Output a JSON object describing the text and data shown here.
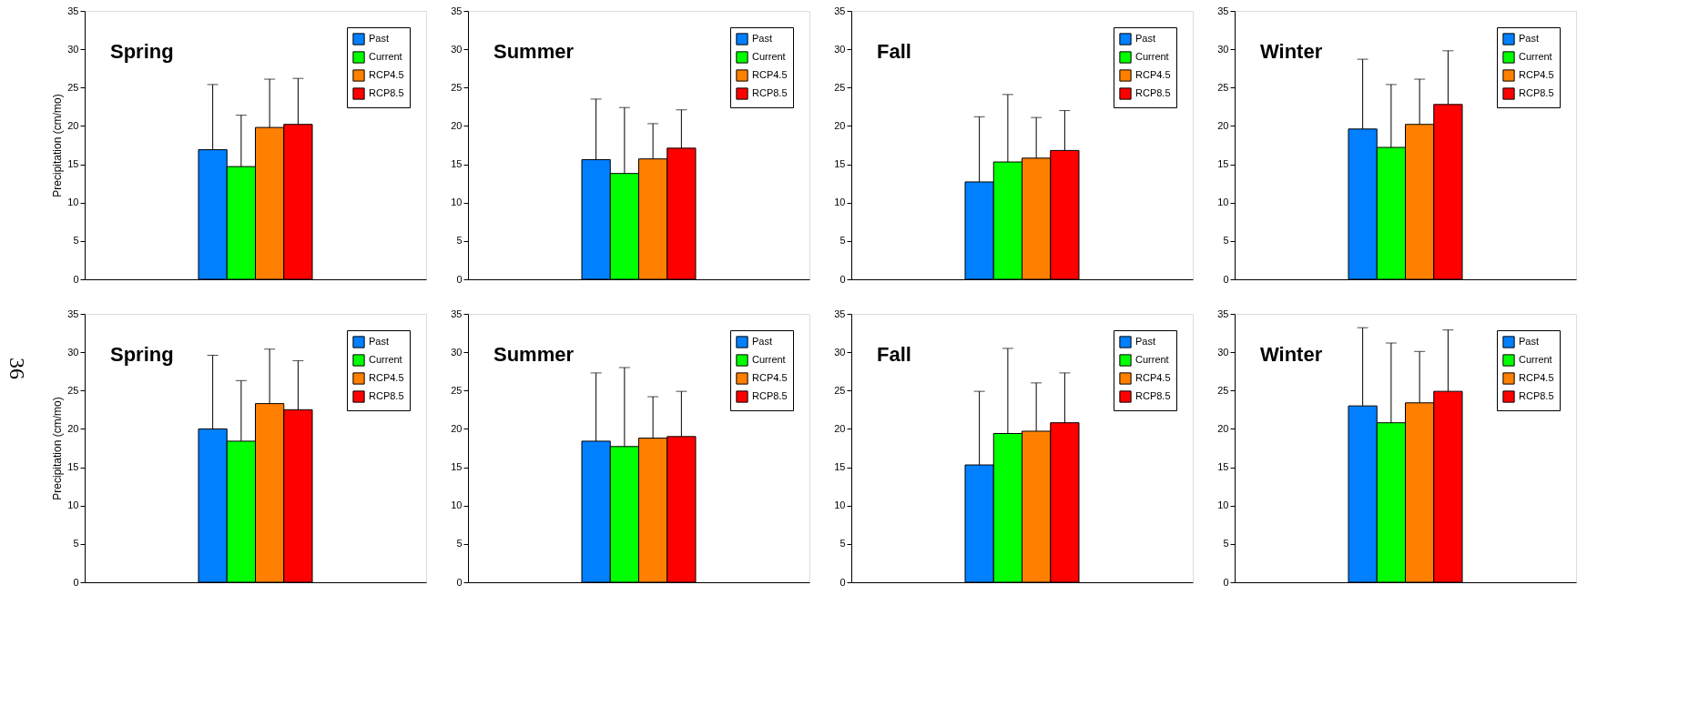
{
  "chart_data": [
    {
      "type": "bar",
      "title": "Spring",
      "ylabel": "Precipitation (cm/mo)",
      "categories": [
        null
      ],
      "ylim": [
        0,
        35
      ],
      "yticks": [
        0,
        5,
        10,
        15,
        20,
        25,
        30,
        35
      ],
      "legend": "top right",
      "tick_labels": "y",
      "series": [
        {
          "name": "Past",
          "color": "#0080ff",
          "values": [
            16.9
          ],
          "errors": [
            [
              16.9,
              25.4
            ]
          ]
        },
        {
          "name": "Current",
          "color": "#00ff00",
          "values": [
            14.7
          ],
          "errors": [
            [
              14.7,
              21.4
            ]
          ]
        },
        {
          "name": "RCP4.5",
          "color": "#ff8000",
          "values": [
            19.8
          ],
          "errors": [
            [
              19.8,
              26.1
            ]
          ]
        },
        {
          "name": "RCP8.5",
          "color": "#ff0000",
          "values": [
            20.2
          ],
          "errors": [
            [
              20.2,
              26.2
            ]
          ]
        }
      ]
    },
    {
      "type": "bar",
      "title": "Summer",
      "categories": [
        null
      ],
      "ylim": [
        0,
        35
      ],
      "yticks": [
        0,
        5,
        10,
        15,
        20,
        25,
        30,
        35
      ],
      "legend": "top right",
      "tick_labels": "y",
      "series": [
        {
          "name": "Past",
          "color": "#0080ff",
          "values": [
            15.6
          ],
          "errors": [
            [
              15.6,
              23.5
            ]
          ]
        },
        {
          "name": "Current",
          "color": "#00ff00",
          "values": [
            13.8
          ],
          "errors": [
            [
              13.8,
              22.4
            ]
          ]
        },
        {
          "name": "RCP4.5",
          "color": "#ff8000",
          "values": [
            15.7
          ],
          "errors": [
            [
              15.7,
              20.3
            ]
          ]
        },
        {
          "name": "RCP8.5",
          "color": "#ff0000",
          "values": [
            17.1
          ],
          "errors": [
            [
              17.1,
              22.1
            ]
          ]
        }
      ]
    },
    {
      "type": "bar",
      "title": "Fall",
      "categories": [
        null
      ],
      "ylim": [
        0,
        35
      ],
      "yticks": [
        0,
        5,
        10,
        15,
        20,
        25,
        30,
        35
      ],
      "legend": "top right",
      "tick_labels": "y",
      "series": [
        {
          "name": "Past",
          "color": "#0080ff",
          "values": [
            12.7
          ],
          "errors": [
            [
              12.7,
              21.2
            ]
          ]
        },
        {
          "name": "Current",
          "color": "#00ff00",
          "values": [
            15.3
          ],
          "errors": [
            [
              15.3,
              24.1
            ]
          ]
        },
        {
          "name": "RCP4.5",
          "color": "#ff8000",
          "values": [
            15.8
          ],
          "errors": [
            [
              15.8,
              21.1
            ]
          ]
        },
        {
          "name": "RCP8.5",
          "color": "#ff0000",
          "values": [
            16.8
          ],
          "errors": [
            [
              16.8,
              22.0
            ]
          ]
        }
      ]
    },
    {
      "type": "bar",
      "title": "Winter",
      "categories": [
        null
      ],
      "ylim": [
        0,
        35
      ],
      "yticks": [
        0,
        5,
        10,
        15,
        20,
        25,
        30,
        35
      ],
      "legend": "top right",
      "tick_labels": "y",
      "series": [
        {
          "name": "Past",
          "color": "#0080ff",
          "values": [
            19.6
          ],
          "errors": [
            [
              19.6,
              28.7
            ]
          ]
        },
        {
          "name": "Current",
          "color": "#00ff00",
          "values": [
            17.2
          ],
          "errors": [
            [
              17.2,
              25.4
            ]
          ]
        },
        {
          "name": "RCP4.5",
          "color": "#ff8000",
          "values": [
            20.2
          ],
          "errors": [
            [
              20.2,
              26.1
            ]
          ]
        },
        {
          "name": "RCP8.5",
          "color": "#ff0000",
          "values": [
            22.8
          ],
          "errors": [
            [
              22.8,
              29.8
            ]
          ]
        }
      ]
    },
    {
      "type": "bar",
      "title": "Spring",
      "ylabel": "Precipitation (cm/mo)",
      "annotations": [
        "36"
      ],
      "categories": [
        null
      ],
      "ylim": [
        0,
        35
      ],
      "yticks": [
        0,
        5,
        10,
        15,
        20,
        25,
        30,
        35
      ],
      "legend": "top right",
      "tick_labels": "y",
      "series": [
        {
          "name": "Past",
          "color": "#0080ff",
          "values": [
            20.0
          ],
          "errors": [
            [
              20.0,
              29.6
            ]
          ]
        },
        {
          "name": "Current",
          "color": "#00ff00",
          "values": [
            18.4
          ],
          "errors": [
            [
              18.4,
              26.3
            ]
          ]
        },
        {
          "name": "RCP4.5",
          "color": "#ff8000",
          "values": [
            23.3
          ],
          "errors": [
            [
              23.3,
              30.4
            ]
          ]
        },
        {
          "name": "RCP8.5",
          "color": "#ff0000",
          "values": [
            22.5
          ],
          "errors": [
            [
              22.5,
              28.9
            ]
          ]
        }
      ]
    },
    {
      "type": "bar",
      "title": "Summer",
      "categories": [
        null
      ],
      "ylim": [
        0,
        35
      ],
      "yticks": [
        0,
        5,
        10,
        15,
        20,
        25,
        30,
        35
      ],
      "legend": "top right",
      "tick_labels": "y",
      "series": [
        {
          "name": "Past",
          "color": "#0080ff",
          "values": [
            18.4
          ],
          "errors": [
            [
              18.4,
              27.3
            ]
          ]
        },
        {
          "name": "Current",
          "color": "#00ff00",
          "values": [
            17.7
          ],
          "errors": [
            [
              17.7,
              28.0
            ]
          ]
        },
        {
          "name": "RCP4.5",
          "color": "#ff8000",
          "values": [
            18.8
          ],
          "errors": [
            [
              18.8,
              24.2
            ]
          ]
        },
        {
          "name": "RCP8.5",
          "color": "#ff0000",
          "values": [
            19.0
          ],
          "errors": [
            [
              19.0,
              24.9
            ]
          ]
        }
      ]
    },
    {
      "type": "bar",
      "title": "Fall",
      "categories": [
        null
      ],
      "ylim": [
        0,
        35
      ],
      "yticks": [
        0,
        5,
        10,
        15,
        20,
        25,
        30,
        35
      ],
      "legend": "top right",
      "tick_labels": "y",
      "series": [
        {
          "name": "Past",
          "color": "#0080ff",
          "values": [
            15.3
          ],
          "errors": [
            [
              15.3,
              24.9
            ]
          ]
        },
        {
          "name": "Current",
          "color": "#00ff00",
          "values": [
            19.4
          ],
          "errors": [
            [
              19.4,
              30.5
            ]
          ]
        },
        {
          "name": "RCP4.5",
          "color": "#ff8000",
          "values": [
            19.7
          ],
          "errors": [
            [
              19.7,
              26.0
            ]
          ]
        },
        {
          "name": "RCP8.5",
          "color": "#ff0000",
          "values": [
            20.8
          ],
          "errors": [
            [
              20.8,
              27.3
            ]
          ]
        }
      ]
    },
    {
      "type": "bar",
      "title": "Winter",
      "categories": [
        null
      ],
      "ylim": [
        0,
        35
      ],
      "yticks": [
        0,
        5,
        10,
        15,
        20,
        25,
        30,
        35
      ],
      "legend": "top right",
      "tick_labels": "y",
      "series": [
        {
          "name": "Past",
          "color": "#0080ff",
          "values": [
            23.0
          ],
          "errors": [
            [
              23.0,
              33.2
            ]
          ]
        },
        {
          "name": "Current",
          "color": "#00ff00",
          "values": [
            20.8
          ],
          "errors": [
            [
              20.8,
              31.2
            ]
          ]
        },
        {
          "name": "RCP4.5",
          "color": "#ff8000",
          "values": [
            23.4
          ],
          "errors": [
            [
              23.4,
              30.1
            ]
          ]
        },
        {
          "name": "RCP8.5",
          "color": "#ff0000",
          "values": [
            24.9
          ],
          "errors": [
            [
              24.9,
              32.9
            ]
          ]
        }
      ]
    }
  ]
}
